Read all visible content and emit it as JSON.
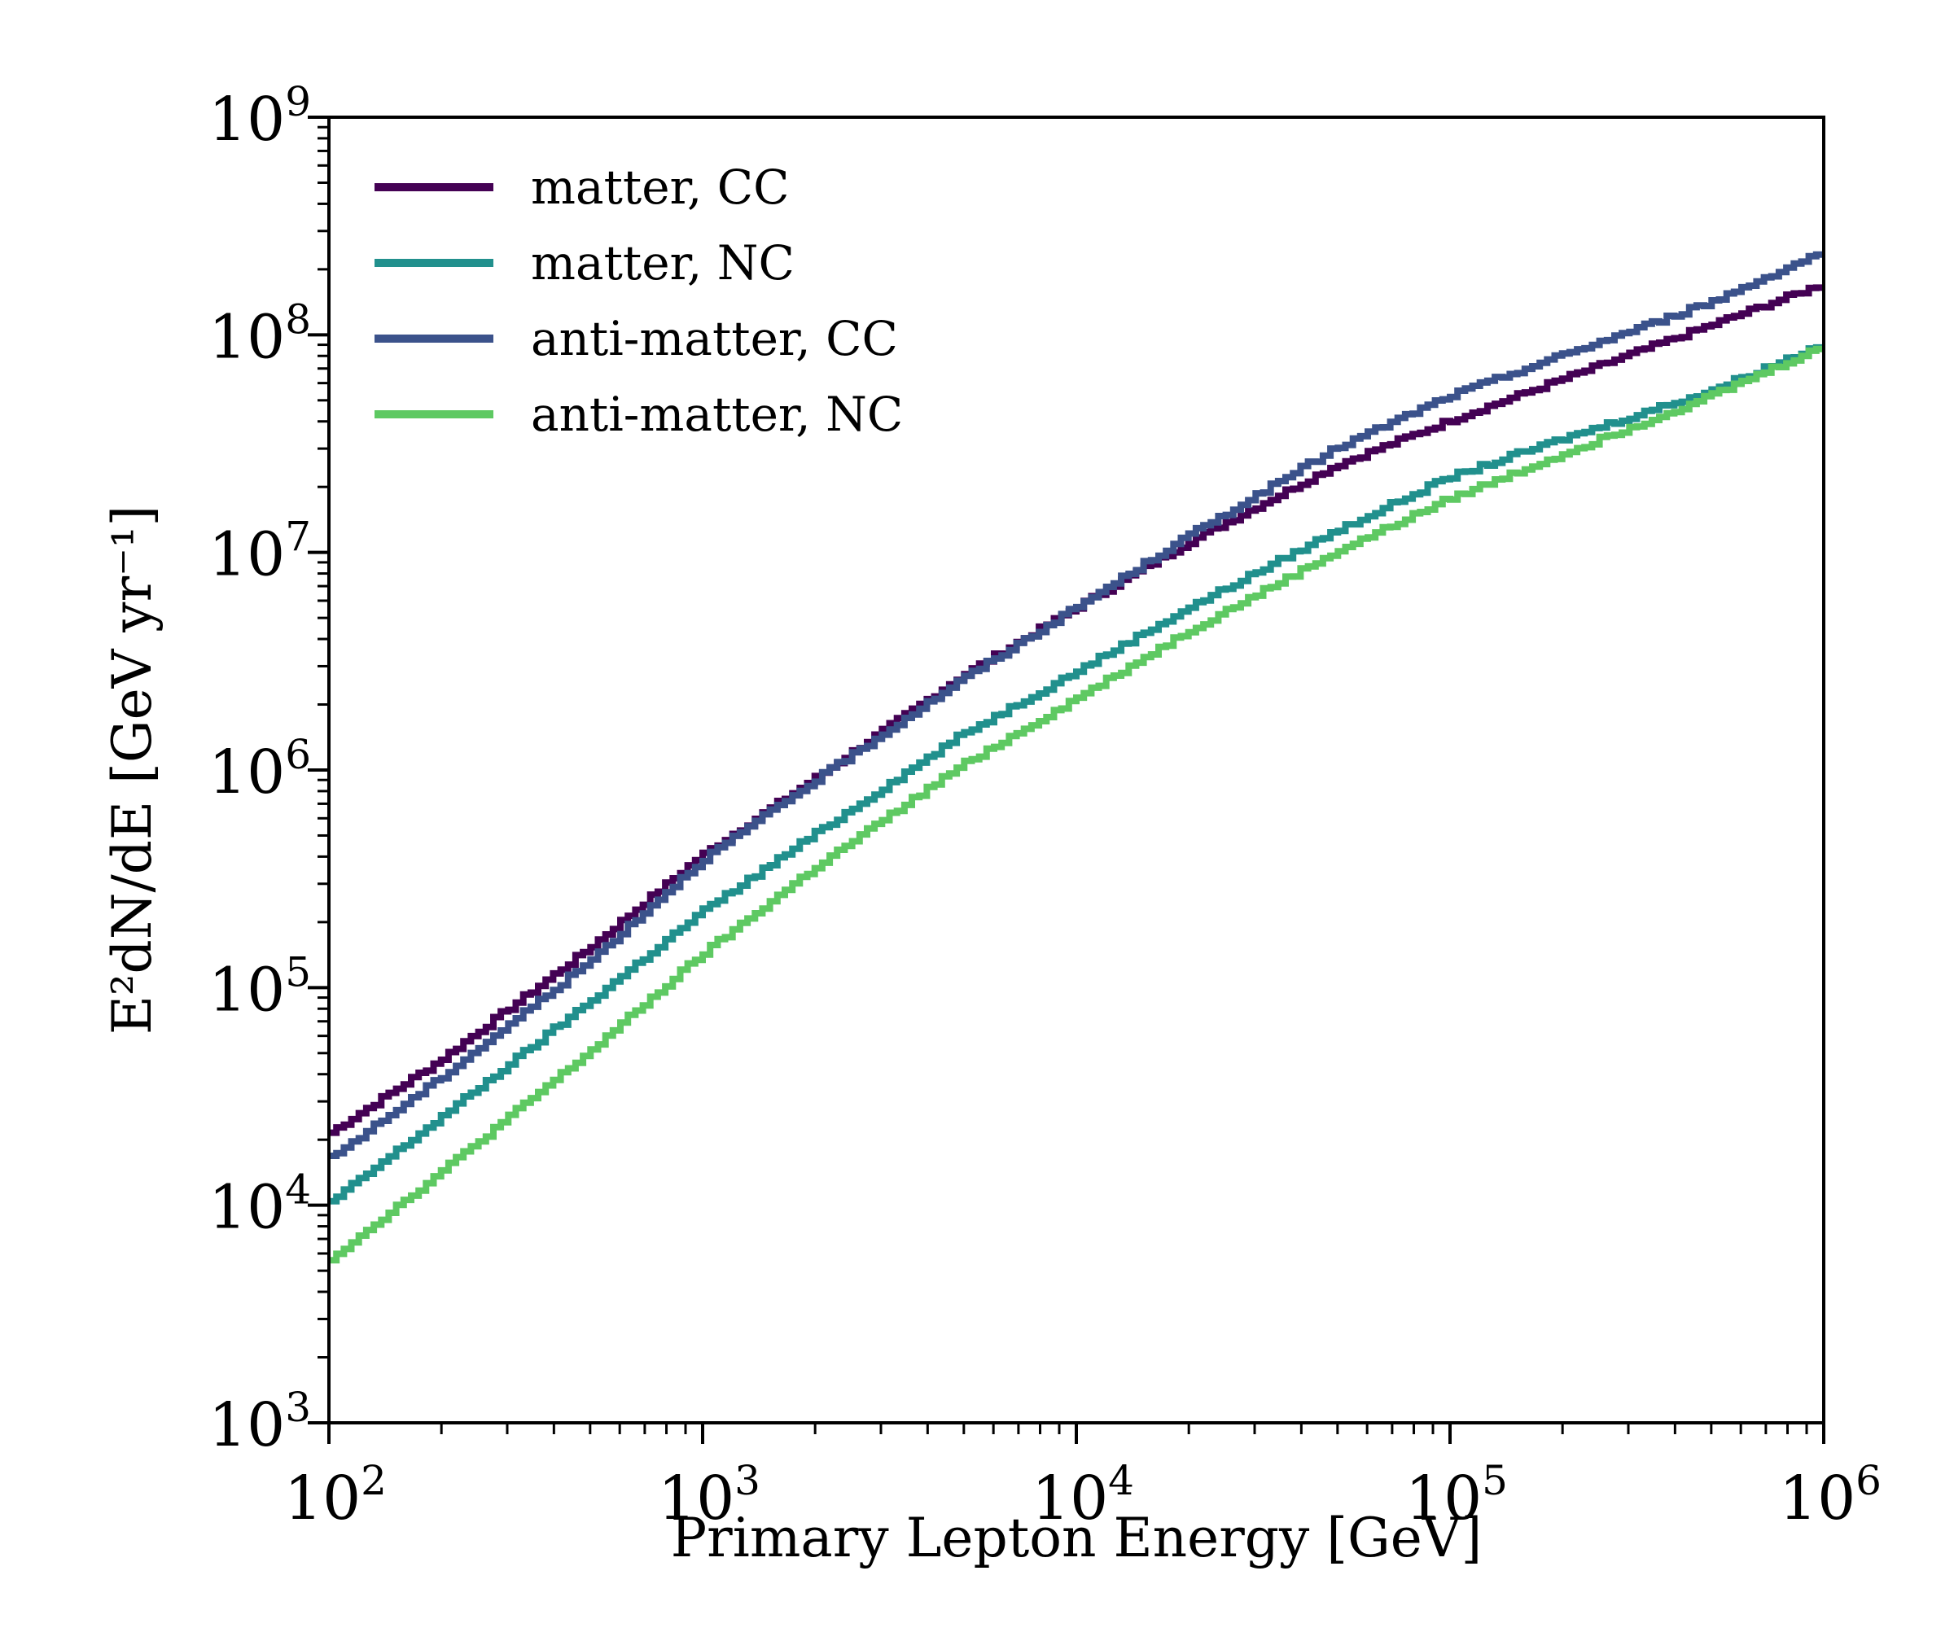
{
  "chart_data": {
    "type": "line",
    "title": "",
    "xlabel": "Primary Lepton Energy [GeV]",
    "ylabel": "E²dN/dE [GeV yr⁻¹]",
    "xscale": "log",
    "yscale": "log",
    "xlim": [
      100,
      1000000
    ],
    "ylim": [
      1000,
      1000000000
    ],
    "grid": false,
    "legend_position": "top-left",
    "x_ticks": [
      {
        "value": 100,
        "base": "10",
        "exp": "2"
      },
      {
        "value": 1000,
        "base": "10",
        "exp": "3"
      },
      {
        "value": 10000,
        "base": "10",
        "exp": "4"
      },
      {
        "value": 100000,
        "base": "10",
        "exp": "5"
      },
      {
        "value": 1000000,
        "base": "10",
        "exp": "6"
      }
    ],
    "y_ticks": [
      {
        "value": 1000,
        "base": "10",
        "exp": "3"
      },
      {
        "value": 10000,
        "base": "10",
        "exp": "4"
      },
      {
        "value": 100000,
        "base": "10",
        "exp": "5"
      },
      {
        "value": 1000000,
        "base": "10",
        "exp": "6"
      },
      {
        "value": 10000000,
        "base": "10",
        "exp": "7"
      },
      {
        "value": 100000000,
        "base": "10",
        "exp": "8"
      },
      {
        "value": 1000000000,
        "base": "10",
        "exp": "9"
      }
    ],
    "x": [
      100,
      200,
      500,
      1000,
      2000,
      5000,
      10000,
      20000,
      50000,
      100000,
      200000,
      500000,
      1000000
    ],
    "series": [
      {
        "name": "matter, CC",
        "color": "#440154",
        "values": [
          21000,
          46000,
          150000,
          400000,
          900000,
          2700000,
          5500000,
          11000000,
          25000000,
          40000000,
          62000000,
          110000000,
          170000000
        ]
      },
      {
        "name": "matter, NC",
        "color": "#21908d",
        "values": [
          10000,
          25000,
          85000,
          220000,
          500000,
          1450000,
          2800000,
          5500000,
          12500000,
          22000000,
          33000000,
          55000000,
          90000000
        ]
      },
      {
        "name": "anti-matter, CC",
        "color": "#3b528b",
        "values": [
          16000,
          38000,
          130000,
          380000,
          880000,
          2600000,
          5500000,
          11800000,
          30000000,
          52000000,
          80000000,
          140000000,
          240000000
        ]
      },
      {
        "name": "anti-matter, NC",
        "color": "#5ec962",
        "values": [
          5500,
          14000,
          50000,
          140000,
          350000,
          1050000,
          2100000,
          4300000,
          10000000,
          17500000,
          28000000,
          52000000,
          88000000
        ]
      }
    ]
  }
}
